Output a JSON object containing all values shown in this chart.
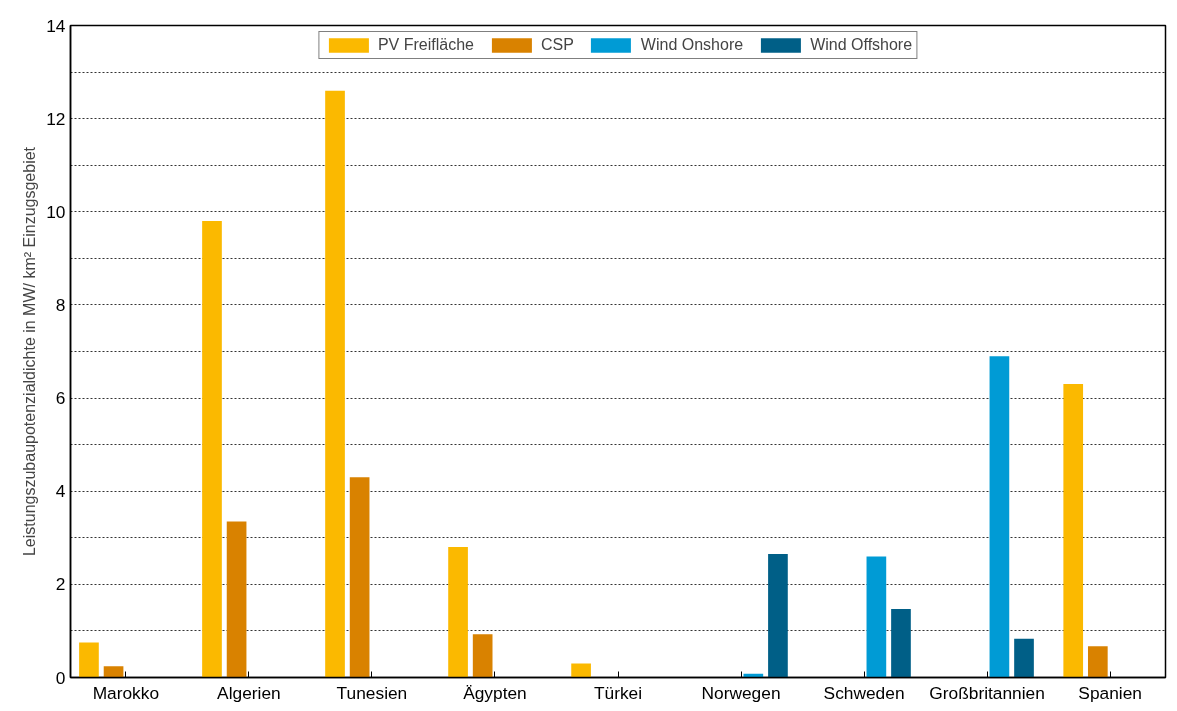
{
  "chart_data": {
    "type": "bar",
    "ylabel": "Leistungszubaupotenzialdichte in MW/ km² Einzugsgebiet",
    "categories": [
      "Marokko",
      "Algerien",
      "Tunesien",
      "Ägypten",
      "Türkei",
      "Norwegen",
      "Schweden",
      "Großbritannien",
      "Spanien"
    ],
    "series": [
      {
        "name": "PV Freifläche",
        "color": "#fbb900",
        "values": [
          0.75,
          9.8,
          12.6,
          2.8,
          0.3,
          0,
          0,
          0,
          6.3
        ]
      },
      {
        "name": "CSP",
        "color": "#d98200",
        "values": [
          0.24,
          3.35,
          4.3,
          0.93,
          0,
          0,
          0,
          0,
          0.67
        ]
      },
      {
        "name": "Wind Onshore",
        "color": "#009bd5",
        "values": [
          0,
          0,
          0,
          0,
          0,
          0.08,
          2.6,
          6.9,
          0
        ]
      },
      {
        "name": "Wind Offshore",
        "color": "#005f87",
        "values": [
          0,
          0,
          0,
          0,
          0,
          2.65,
          1.47,
          0.83,
          0
        ]
      }
    ],
    "ylim": [
      0,
      14
    ],
    "yticks": [
      0,
      {
        "value": 1,
        "label": null
      },
      2,
      {
        "value": 3,
        "label": null
      },
      4,
      {
        "value": 5,
        "label": null
      },
      6,
      {
        "value": 7,
        "label": null
      },
      8,
      {
        "value": 9,
        "label": null
      },
      10,
      {
        "value": 11,
        "label": null
      },
      12,
      {
        "value": 13,
        "label": null
      },
      14
    ],
    "grid": "y",
    "legend": "top"
  }
}
